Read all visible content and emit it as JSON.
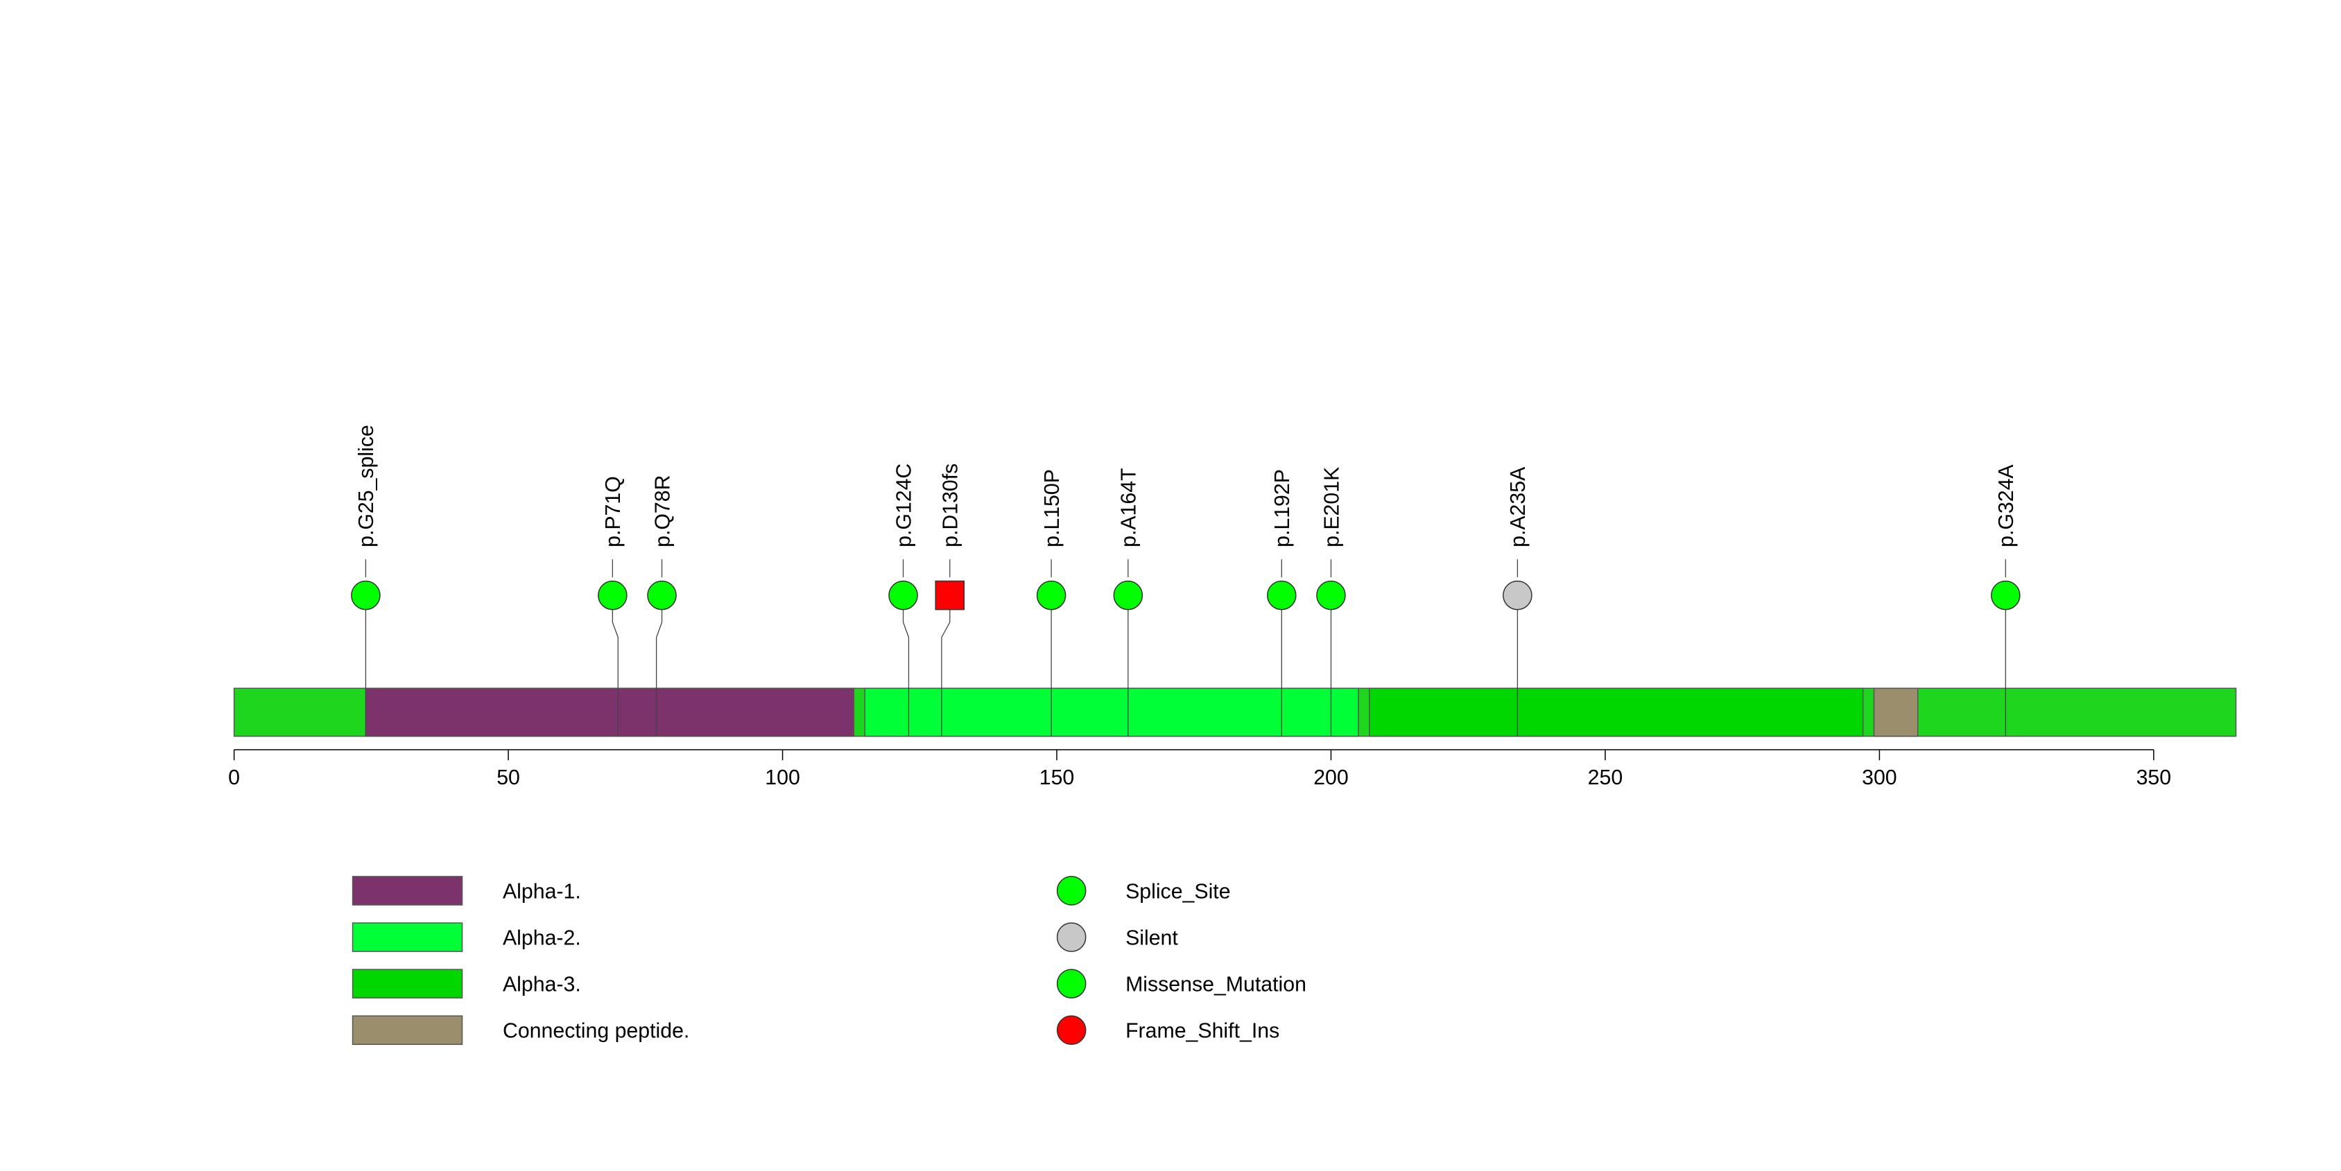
{
  "chart_data": {
    "type": "lollipop",
    "protein_length": 365,
    "axis": {
      "min": 0,
      "max": 365,
      "ticks": [
        0,
        50,
        100,
        150,
        200,
        250,
        300,
        350
      ],
      "tick_labels": [
        "0",
        "50",
        "100",
        "150",
        "200",
        "250",
        "300",
        "350"
      ]
    },
    "backbone_color": "#1fd61f",
    "domains": [
      {
        "name": "Alpha-1.",
        "start": 24,
        "end": 113,
        "color": "#7c336c"
      },
      {
        "name": "Alpha-2.",
        "start": 115,
        "end": 205,
        "color": "#00ff36"
      },
      {
        "name": "Alpha-3.",
        "start": 207,
        "end": 297,
        "color": "#00d600"
      },
      {
        "name": "Connecting peptide.",
        "start": 299,
        "end": 307,
        "color": "#9b8e6d"
      }
    ],
    "mutations": [
      {
        "label": "p.G25_splice",
        "pos": 24,
        "head": 24,
        "type": "Splice_Site",
        "shape": "circle"
      },
      {
        "label": "p.P71Q",
        "pos": 70,
        "head": 69,
        "type": "Missense_Mutation",
        "shape": "circle"
      },
      {
        "label": "p.Q78R",
        "pos": 77,
        "head": 78,
        "type": "Missense_Mutation",
        "shape": "circle"
      },
      {
        "label": "p.G124C",
        "pos": 123,
        "head": 122,
        "type": "Missense_Mutation",
        "shape": "circle"
      },
      {
        "label": "p.D130fs",
        "pos": 129,
        "head": 130.5,
        "type": "Frame_Shift_Ins",
        "shape": "square"
      },
      {
        "label": "p.L150P",
        "pos": 149,
        "head": 149,
        "type": "Missense_Mutation",
        "shape": "circle"
      },
      {
        "label": "p.A164T",
        "pos": 163,
        "head": 163,
        "type": "Missense_Mutation",
        "shape": "circle"
      },
      {
        "label": "p.L192P",
        "pos": 191,
        "head": 191,
        "type": "Missense_Mutation",
        "shape": "circle"
      },
      {
        "label": "p.E201K",
        "pos": 200,
        "head": 200,
        "type": "Missense_Mutation",
        "shape": "circle"
      },
      {
        "label": "p.A235A",
        "pos": 234,
        "head": 234,
        "type": "Silent",
        "shape": "circle"
      },
      {
        "label": "p.G324A",
        "pos": 323,
        "head": 323,
        "type": "Missense_Mutation",
        "shape": "circle"
      }
    ],
    "legend_domains": [
      {
        "name": "Alpha-1.",
        "color": "#7c336c"
      },
      {
        "name": "Alpha-2.",
        "color": "#00ff36"
      },
      {
        "name": "Alpha-3.",
        "color": "#00d600"
      },
      {
        "name": "Connecting peptide.",
        "color": "#9b8e6d"
      }
    ],
    "legend_mutations": [
      {
        "name": "Splice_Site",
        "color": "#00ff00"
      },
      {
        "name": "Silent",
        "color": "#c8c8c8"
      },
      {
        "name": "Missense_Mutation",
        "color": "#00ff00"
      },
      {
        "name": "Frame_Shift_Ins",
        "color": "#ff0000"
      }
    ],
    "type_colors": {
      "Splice_Site": "#00ff00",
      "Silent": "#c8c8c8",
      "Missense_Mutation": "#00ff00",
      "Frame_Shift_Ins": "#ff0000"
    }
  }
}
